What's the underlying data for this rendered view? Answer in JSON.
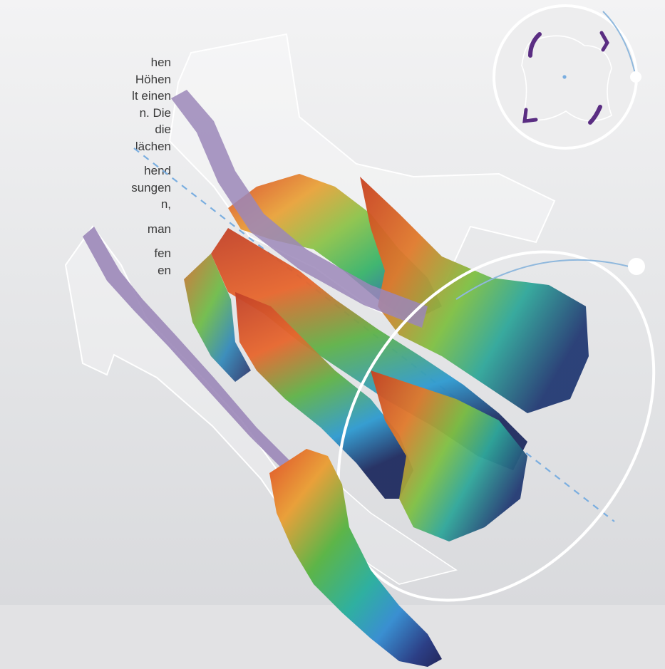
{
  "text_fragments": [
    "hen",
    "Höhen",
    "lt einen",
    "n. Die",
    "die",
    "lächen",
    "",
    "hend",
    "sungen",
    "n,",
    "",
    "man",
    "",
    "fen",
    "en"
  ],
  "colors": {
    "purple_band": "#9b87b8",
    "dark_purple": "#5a2d82",
    "axis_dashed": "#7aaee0",
    "orbit_white": "#ffffff",
    "orbit_blue": "#8fb8dd"
  }
}
